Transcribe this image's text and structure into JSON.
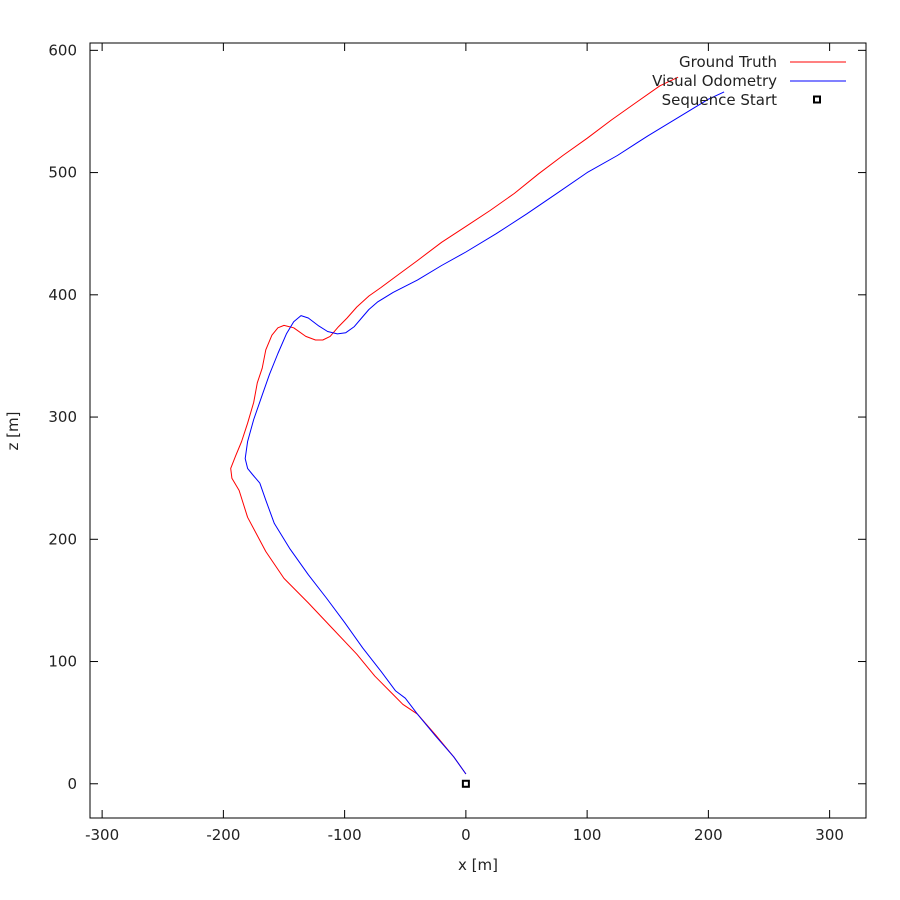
{
  "chart_data": {
    "type": "line",
    "title": "",
    "xlabel": "x [m]",
    "ylabel": "z [m]",
    "xlim": [
      -310,
      330
    ],
    "ylim": [
      -28,
      606
    ],
    "xticks": [
      -300,
      -200,
      -100,
      0,
      100,
      200,
      300
    ],
    "xtick_labels": [
      "-300",
      "-200",
      "-100",
      "0",
      "100",
      "200",
      "300"
    ],
    "yticks": [
      0,
      100,
      200,
      300,
      400,
      500,
      600
    ],
    "ytick_labels": [
      "0",
      "100",
      "200",
      "300",
      "400",
      "500",
      "600"
    ],
    "grid": false,
    "legend_position": "top-right",
    "series": [
      {
        "name": "Ground Truth",
        "color": "#ff0000",
        "x": [
          0,
          -10,
          -25,
          -40,
          -52,
          -60,
          -75,
          -90,
          -110,
          -130,
          -150,
          -165,
          -180,
          -187,
          -193,
          -194,
          -190,
          -185,
          -180,
          -175,
          -172,
          -168,
          -165,
          -160,
          -155,
          -150,
          -142,
          -132,
          -124,
          -118,
          -112,
          -105,
          -98,
          -90,
          -80,
          -70,
          -55,
          -40,
          -20,
          0,
          20,
          40,
          60,
          80,
          100,
          120,
          140,
          160,
          175
        ],
        "y": [
          8,
          22,
          40,
          57,
          65,
          73,
          88,
          106,
          127,
          148,
          168,
          190,
          218,
          240,
          250,
          258,
          268,
          280,
          295,
          312,
          328,
          340,
          355,
          367,
          373,
          375,
          373,
          366,
          363,
          363,
          366,
          374,
          381,
          390,
          399,
          406,
          417,
          428,
          443,
          456,
          469,
          483,
          499,
          514,
          528,
          543,
          557,
          571,
          578
        ]
      },
      {
        "name": "Visual Odometry",
        "color": "#0000ff",
        "x": [
          0,
          -10,
          -25,
          -40,
          -50,
          -58,
          -70,
          -85,
          -100,
          -115,
          -130,
          -145,
          -158,
          -165,
          -170,
          -176,
          -180,
          -182,
          -180,
          -175,
          -168,
          -162,
          -155,
          -148,
          -142,
          -136,
          -130,
          -122,
          -114,
          -106,
          -99,
          -92,
          -86,
          -80,
          -73,
          -60,
          -40,
          -20,
          0,
          25,
          50,
          75,
          100,
          125,
          150,
          175,
          200,
          213
        ],
        "y": [
          8,
          22,
          39,
          57,
          70,
          76,
          92,
          111,
          132,
          152,
          171,
          192,
          213,
          232,
          246,
          253,
          258,
          266,
          280,
          298,
          318,
          335,
          352,
          368,
          378,
          383,
          381,
          375,
          370,
          368,
          369,
          374,
          381,
          388,
          394,
          402,
          412,
          424,
          435,
          450,
          466,
          483,
          500,
          514,
          530,
          545,
          560,
          566
        ]
      }
    ],
    "markers": [
      {
        "name": "Sequence Start",
        "shape": "square",
        "color": "#000000",
        "x": 0,
        "y": 0
      }
    ]
  }
}
